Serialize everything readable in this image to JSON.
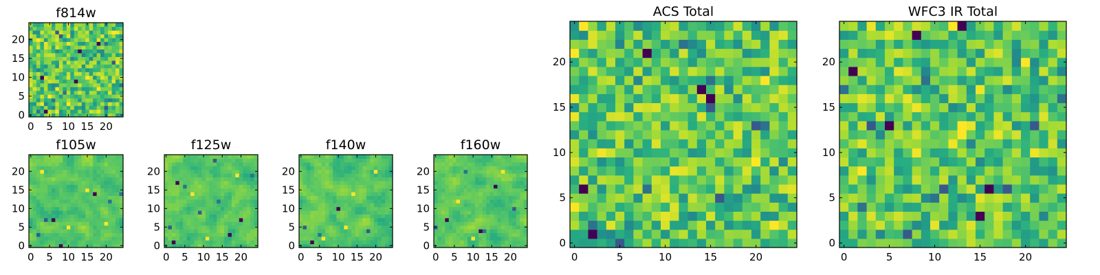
{
  "chart_data": [
    {
      "type": "heatmap",
      "title": "f814w",
      "grid_size": 25,
      "xticks": [
        0,
        5,
        10,
        15,
        20
      ],
      "yticks": [
        0,
        5,
        10,
        15,
        20
      ],
      "xlim": [
        -0.5,
        24.5
      ],
      "ylim": [
        -0.5,
        24.5
      ],
      "colormap": "viridis",
      "seed": 11,
      "pixel_scale": 1,
      "smooth": 0,
      "dark_cells": [
        [
          18,
          19
        ],
        [
          20,
          19
        ],
        [
          8,
          21
        ],
        [
          3,
          10
        ],
        [
          22,
          14
        ],
        [
          6,
          4
        ],
        [
          12,
          9
        ],
        [
          2,
          1
        ],
        [
          20,
          2
        ],
        [
          13,
          17
        ],
        [
          7,
          22
        ],
        [
          9,
          6
        ],
        [
          4,
          1
        ],
        [
          24,
          8
        ]
      ],
      "bright_cells": [
        [
          5,
          5
        ],
        [
          15,
          10
        ],
        [
          2,
          20
        ],
        [
          10,
          3
        ],
        [
          22,
          22
        ],
        [
          18,
          7
        ]
      ]
    },
    {
      "type": "heatmap",
      "title": "f105w",
      "grid_size": 25,
      "xticks": [
        0,
        5,
        10,
        15,
        20
      ],
      "yticks": [
        0,
        5,
        10,
        15,
        20
      ],
      "xlim": [
        -0.5,
        24.5
      ],
      "ylim": [
        -0.5,
        24.5
      ],
      "colormap": "viridis",
      "seed": 23,
      "pixel_scale": 1,
      "smooth": 1,
      "dark_cells": [
        [
          8,
          0
        ],
        [
          21,
          12
        ],
        [
          4,
          7
        ],
        [
          6,
          7
        ],
        [
          2,
          3
        ],
        [
          24,
          14
        ],
        [
          17,
          14
        ]
      ],
      "bright_cells": [
        [
          10,
          5
        ],
        [
          15,
          15
        ],
        [
          3,
          20
        ],
        [
          20,
          6
        ]
      ]
    },
    {
      "type": "heatmap",
      "title": "f125w",
      "grid_size": 25,
      "xticks": [
        0,
        5,
        10,
        15,
        20
      ],
      "yticks": [
        0,
        5,
        10,
        15,
        20
      ],
      "xlim": [
        -0.5,
        24.5
      ],
      "ylim": [
        -0.5,
        24.5
      ],
      "colormap": "viridis",
      "seed": 37,
      "pixel_scale": 1,
      "smooth": 1,
      "dark_cells": [
        [
          3,
          17
        ],
        [
          5,
          16
        ],
        [
          1,
          5
        ],
        [
          2,
          1
        ],
        [
          9,
          9
        ],
        [
          14,
          12
        ],
        [
          20,
          7
        ],
        [
          23,
          19
        ],
        [
          13,
          23
        ],
        [
          17,
          3
        ]
      ],
      "bright_cells": [
        [
          7,
          14
        ],
        [
          19,
          19
        ],
        [
          11,
          2
        ]
      ]
    },
    {
      "type": "heatmap",
      "title": "f140w",
      "grid_size": 25,
      "xticks": [
        0,
        5,
        10,
        15,
        20
      ],
      "yticks": [
        0,
        5,
        10,
        15,
        20
      ],
      "xlim": [
        -0.5,
        24.5
      ],
      "ylim": [
        -0.5,
        24.5
      ],
      "colormap": "viridis",
      "seed": 53,
      "pixel_scale": 1,
      "smooth": 1,
      "dark_cells": [
        [
          3,
          1
        ],
        [
          5,
          3
        ],
        [
          1,
          5
        ],
        [
          10,
          10
        ],
        [
          18,
          4
        ]
      ],
      "bright_cells": [
        [
          6,
          2
        ],
        [
          14,
          14
        ],
        [
          20,
          20
        ],
        [
          12,
          5
        ]
      ]
    },
    {
      "type": "heatmap",
      "title": "f160w",
      "grid_size": 25,
      "xticks": [
        0,
        5,
        10,
        15,
        20
      ],
      "yticks": [
        0,
        5,
        10,
        15,
        20
      ],
      "xlim": [
        -0.5,
        24.5
      ],
      "ylim": [
        -0.5,
        24.5
      ],
      "colormap": "viridis",
      "seed": 71,
      "pixel_scale": 1,
      "smooth": 1,
      "dark_cells": [
        [
          12,
          4
        ],
        [
          13,
          4
        ],
        [
          0,
          5
        ],
        [
          3,
          7
        ],
        [
          21,
          10
        ],
        [
          8,
          20
        ],
        [
          16,
          16
        ]
      ],
      "bright_cells": [
        [
          6,
          12
        ],
        [
          18,
          20
        ],
        [
          10,
          2
        ]
      ]
    },
    {
      "type": "heatmap",
      "title": "ACS Total",
      "grid_size": 25,
      "xticks": [
        0,
        5,
        10,
        15,
        20
      ],
      "yticks": [
        0,
        5,
        10,
        15,
        20
      ],
      "xlim": [
        -0.5,
        24.5
      ],
      "ylim": [
        -0.5,
        24.5
      ],
      "colormap": "viridis",
      "seed": 97,
      "pixel_scale": 2,
      "smooth": 0,
      "dark_cells": [
        [
          14,
          17
        ],
        [
          15,
          18
        ],
        [
          15,
          15
        ],
        [
          15,
          16
        ],
        [
          20,
          13
        ],
        [
          21,
          13
        ],
        [
          1,
          6
        ],
        [
          8,
          6
        ],
        [
          16,
          5
        ],
        [
          2,
          1
        ],
        [
          5,
          0
        ],
        [
          2,
          2
        ],
        [
          8,
          21
        ],
        [
          12,
          22
        ]
      ],
      "bright_cells": [
        [
          1,
          24
        ],
        [
          0,
          21
        ],
        [
          21,
          18
        ],
        [
          20,
          9
        ],
        [
          22,
          2
        ]
      ]
    },
    {
      "type": "heatmap",
      "title": "WFC3 IR Total",
      "grid_size": 25,
      "xticks": [
        0,
        5,
        10,
        15,
        20
      ],
      "yticks": [
        0,
        5,
        10,
        15,
        20
      ],
      "xlim": [
        -0.5,
        24.5
      ],
      "ylim": [
        -0.5,
        24.5
      ],
      "colormap": "viridis",
      "seed": 131,
      "pixel_scale": 2,
      "smooth": 0,
      "dark_cells": [
        [
          8,
          23
        ],
        [
          9,
          18
        ],
        [
          3,
          13
        ],
        [
          5,
          13
        ],
        [
          21,
          13
        ],
        [
          24,
          16
        ],
        [
          1,
          19
        ],
        [
          0,
          17
        ],
        [
          11,
          6
        ],
        [
          16,
          6
        ],
        [
          18,
          6
        ],
        [
          10,
          5
        ],
        [
          15,
          3
        ],
        [
          2,
          4
        ],
        [
          7,
          1
        ],
        [
          13,
          24
        ]
      ],
      "bright_cells": [
        [
          13,
          12
        ],
        [
          13,
          13
        ],
        [
          12,
          24
        ],
        [
          2,
          8
        ],
        [
          20,
          20
        ]
      ]
    }
  ]
}
